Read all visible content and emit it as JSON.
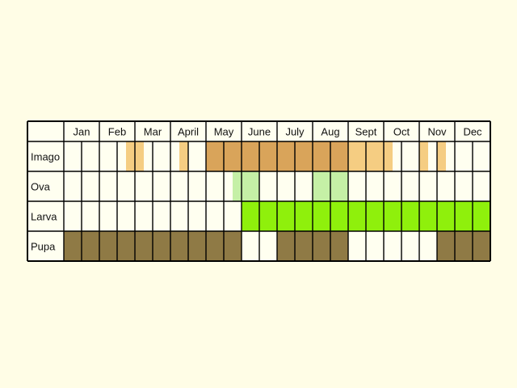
{
  "colors": {
    "background": "#fffde6",
    "cell_empty": "#fffff0",
    "grid": "#000000",
    "imago_dark": "#d9a45a",
    "imago_light": "#f5cd82",
    "ova_light": "#c5f0a6",
    "larva": "#8ff00c",
    "pupa": "#8f7a45"
  },
  "chart_data": {
    "type": "table",
    "title": "",
    "columns": [
      "Jan",
      "Feb",
      "Mar",
      "April",
      "May",
      "June",
      "July",
      "Aug",
      "Sept",
      "Oct",
      "Nov",
      "Dec"
    ],
    "segments_per_month": 2,
    "rows": [
      {
        "name": "Imago",
        "cells": [
          {
            "index": 3.5,
            "span": 1,
            "shade": "imago_light"
          },
          {
            "index": 6.5,
            "span": 0.5,
            "shade": "imago_light"
          },
          {
            "index": 8,
            "span": 8,
            "shade": "imago_dark"
          },
          {
            "index": 16,
            "span": 2.5,
            "shade": "imago_light"
          },
          {
            "index": 20,
            "span": 0.5,
            "shade": "imago_light"
          },
          {
            "index": 21,
            "span": 0.5,
            "shade": "imago_light"
          }
        ]
      },
      {
        "name": "Ova",
        "cells": [
          {
            "index": 9.5,
            "span": 1.5,
            "shade": "ova_light"
          },
          {
            "index": 14,
            "span": 2,
            "shade": "ova_light"
          }
        ]
      },
      {
        "name": "Larva",
        "cells": [
          {
            "index": 10,
            "span": 14,
            "shade": "larva"
          }
        ]
      },
      {
        "name": "Pupa",
        "cells": [
          {
            "index": 0,
            "span": 10,
            "shade": "pupa"
          },
          {
            "index": 12,
            "span": 4,
            "shade": "pupa"
          },
          {
            "index": 21,
            "span": 3,
            "shade": "pupa"
          }
        ]
      }
    ]
  }
}
